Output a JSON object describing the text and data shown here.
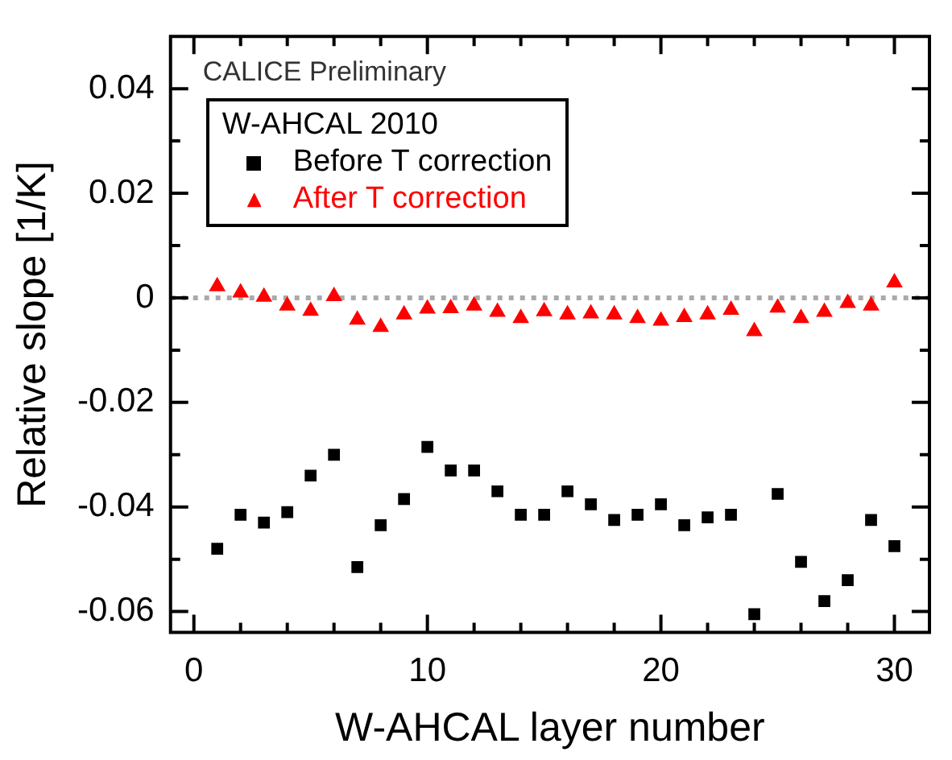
{
  "chart_data": {
    "type": "scatter",
    "xlabel": "W-AHCAL layer number",
    "ylabel": "Relative slope [1/K]",
    "legend_title": "W-AHCAL 2010",
    "legend": "top left",
    "annotations": [
      "CALICE Preliminary"
    ],
    "x": [
      1,
      2,
      3,
      4,
      5,
      6,
      7,
      8,
      9,
      10,
      11,
      12,
      13,
      14,
      15,
      16,
      17,
      18,
      19,
      20,
      21,
      22,
      23,
      24,
      25,
      26,
      27,
      28,
      29,
      30
    ],
    "xlim": [
      -1,
      31.5
    ],
    "ylim": [
      -0.064,
      0.05
    ],
    "xticks": [
      0,
      {
        "value": 2,
        "label": null
      },
      {
        "value": 4,
        "label": null
      },
      {
        "value": 6,
        "label": null
      },
      {
        "value": 8,
        "label": null
      },
      10,
      {
        "value": 12,
        "label": null
      },
      {
        "value": 14,
        "label": null
      },
      {
        "value": 16,
        "label": null
      },
      {
        "value": 18,
        "label": null
      },
      20,
      {
        "value": 22,
        "label": null
      },
      {
        "value": 24,
        "label": null
      },
      {
        "value": 26,
        "label": null
      },
      {
        "value": 28,
        "label": null
      },
      30
    ],
    "yticks": [
      -0.06,
      {
        "value": -0.05,
        "label": null
      },
      -0.04,
      {
        "value": -0.03,
        "label": null
      },
      -0.02,
      {
        "value": -0.01,
        "label": null
      },
      0,
      {
        "value": 0.01,
        "label": null
      },
      0.02,
      {
        "value": 0.03,
        "label": null
      },
      0.04
    ],
    "ref_lines": [
      {
        "axis": "y",
        "value": 0,
        "color": "#aaaaaa",
        "line_style": "dotted"
      }
    ],
    "series": [
      {
        "name": "Before T correction",
        "color": "#000000",
        "marker": "square",
        "values": [
          -0.048,
          -0.0415,
          -0.043,
          -0.041,
          -0.034,
          -0.03,
          -0.0515,
          -0.0435,
          -0.0385,
          -0.0285,
          -0.033,
          -0.033,
          -0.037,
          -0.0415,
          -0.0415,
          -0.037,
          -0.0395,
          -0.0425,
          -0.0415,
          -0.0395,
          -0.0435,
          -0.042,
          -0.0415,
          -0.0605,
          -0.0375,
          -0.0505,
          -0.058,
          -0.054,
          -0.0425,
          -0.0475
        ]
      },
      {
        "name": "After T correction",
        "color": "#ff0000",
        "marker": "triangle",
        "values": [
          0.0022,
          0.001,
          0.0002,
          -0.0015,
          -0.0025,
          0.0003,
          -0.0042,
          -0.0056,
          -0.0032,
          -0.0021,
          -0.002,
          -0.0015,
          -0.0027,
          -0.0039,
          -0.0026,
          -0.0032,
          -0.003,
          -0.0032,
          -0.0039,
          -0.0044,
          -0.0037,
          -0.0032,
          -0.0023,
          -0.0064,
          -0.0019,
          -0.0039,
          -0.0027,
          -0.001,
          -0.0015,
          0.0029
        ]
      }
    ]
  }
}
